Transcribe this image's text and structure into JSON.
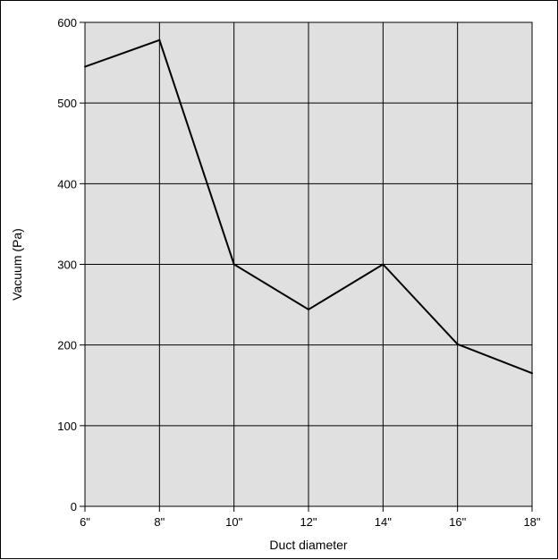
{
  "chart_data": {
    "type": "line",
    "title": "",
    "xlabel": "Duct diameter",
    "ylabel": "Vacuum (Pa)",
    "categories": [
      "6\"",
      "8\"",
      "10\"",
      "12\"",
      "14\"",
      "16\"",
      "18\""
    ],
    "series": [
      {
        "values": [
          545,
          578,
          300,
          244,
          300,
          201,
          165
        ]
      }
    ],
    "ylim": [
      0,
      600
    ],
    "yticks": [
      0,
      100,
      200,
      300,
      400,
      500,
      600
    ],
    "grid": true,
    "legend": "none",
    "colors": {
      "plot_background": "#e0e0e0",
      "grid": "#000000",
      "line": "#000000"
    }
  }
}
